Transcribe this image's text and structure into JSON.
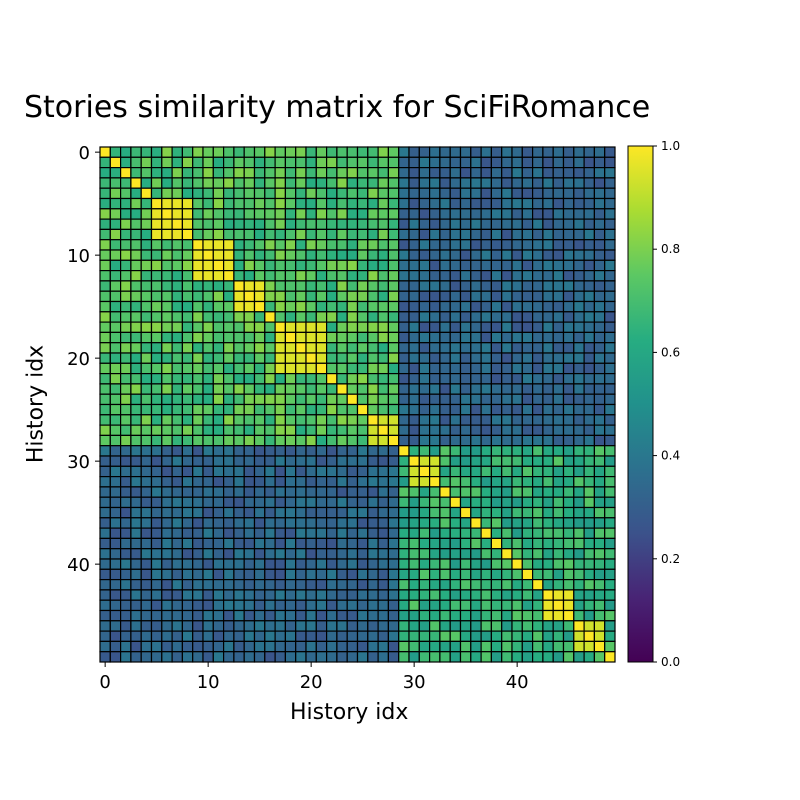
{
  "chart_data": {
    "type": "heatmap",
    "title": "Stories similarity matrix for SciFiRomance",
    "xlabel": "History idx",
    "ylabel": "History idx",
    "size": 50,
    "x_ticks": [
      0,
      10,
      20,
      30,
      40
    ],
    "y_ticks": [
      0,
      10,
      20,
      30,
      40
    ],
    "colormap": "viridis",
    "cell_edgecolor": "#000000",
    "clim": [
      0.0,
      1.0
    ],
    "colorbar_ticks": [
      "0.0",
      "0.2",
      "0.4",
      "0.6",
      "0.8",
      "1.0"
    ],
    "clusters": [
      {
        "start": 0,
        "end": 28,
        "within": 0.72,
        "variation": 0.1
      },
      {
        "start": 29,
        "end": 49,
        "within": 0.64,
        "variation": 0.1
      }
    ],
    "cross_cluster_value": 0.33,
    "sub_blocks": [
      {
        "start": 5,
        "end": 8,
        "value": 0.97
      },
      {
        "start": 9,
        "end": 12,
        "value": 0.97
      },
      {
        "start": 13,
        "end": 15,
        "value": 0.97
      },
      {
        "start": 17,
        "end": 21,
        "value": 0.95
      },
      {
        "start": 26,
        "end": 28,
        "value": 0.93
      },
      {
        "start": 30,
        "end": 32,
        "value": 0.93
      },
      {
        "start": 43,
        "end": 45,
        "value": 0.97
      },
      {
        "start": 46,
        "end": 48,
        "value": 0.93
      }
    ],
    "diagonal_value": 1.0
  }
}
